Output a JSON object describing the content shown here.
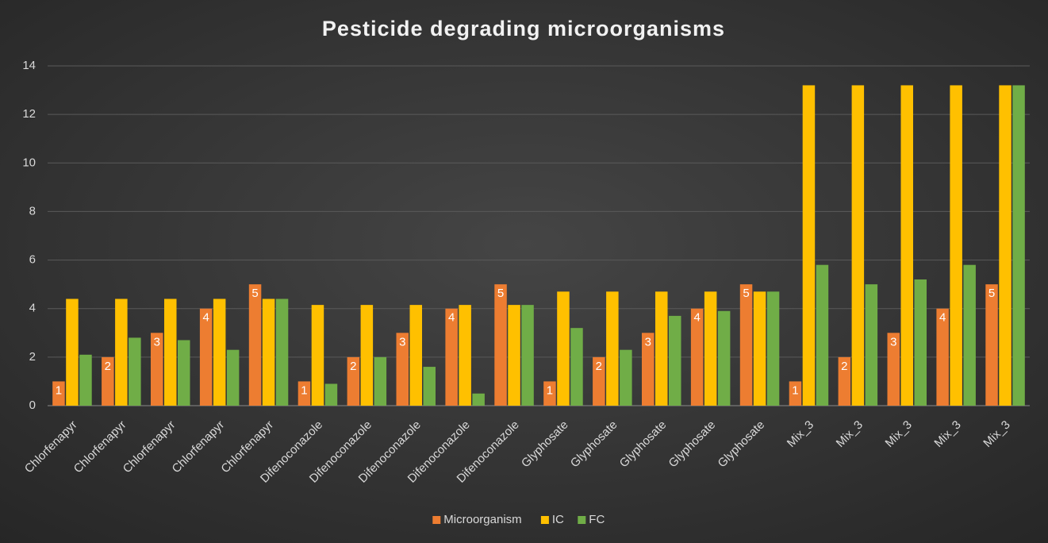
{
  "chart_data": {
    "type": "bar",
    "title": "Pesticide degrading microorganisms",
    "categories": [
      "Chlorfenapyr",
      "Chlorfenapyr",
      "Chlorfenapyr",
      "Chlorfenapyr",
      "Chlorfenapyr",
      "Difenoconazole",
      "Difenoconazole",
      "Difenoconazole",
      "Difenoconazole",
      "Difenoconazole",
      "Glyphosate",
      "Glyphosate",
      "Glyphosate",
      "Glyphosate",
      "Glyphosate",
      "Mix_3",
      "Mix_3",
      "Mix_3",
      "Mix_3",
      "Mix_3"
    ],
    "series": [
      {
        "name": "Microorganism",
        "color": "#ed7d31",
        "show_labels": true,
        "values": [
          1,
          2,
          3,
          4,
          5,
          1,
          2,
          3,
          4,
          5,
          1,
          2,
          3,
          4,
          5,
          1,
          2,
          3,
          4,
          5
        ]
      },
      {
        "name": "IC",
        "color": "#ffc000",
        "values": [
          4.4,
          4.4,
          4.4,
          4.4,
          4.4,
          4.15,
          4.15,
          4.15,
          4.15,
          4.15,
          4.7,
          4.7,
          4.7,
          4.7,
          4.7,
          13.2,
          13.2,
          13.2,
          13.2,
          13.2
        ]
      },
      {
        "name": "FC",
        "color": "#70ad47",
        "values": [
          2.1,
          2.8,
          2.7,
          2.3,
          4.4,
          0.9,
          2.0,
          1.6,
          0.5,
          4.15,
          3.2,
          2.3,
          3.7,
          3.9,
          4.7,
          5.8,
          5.0,
          5.2,
          5.8,
          13.2
        ]
      }
    ],
    "ylim": [
      0,
      14
    ],
    "yticks": [
      0,
      2,
      4,
      6,
      8,
      10,
      12,
      14
    ],
    "grid": true,
    "legend": "bottom"
  }
}
